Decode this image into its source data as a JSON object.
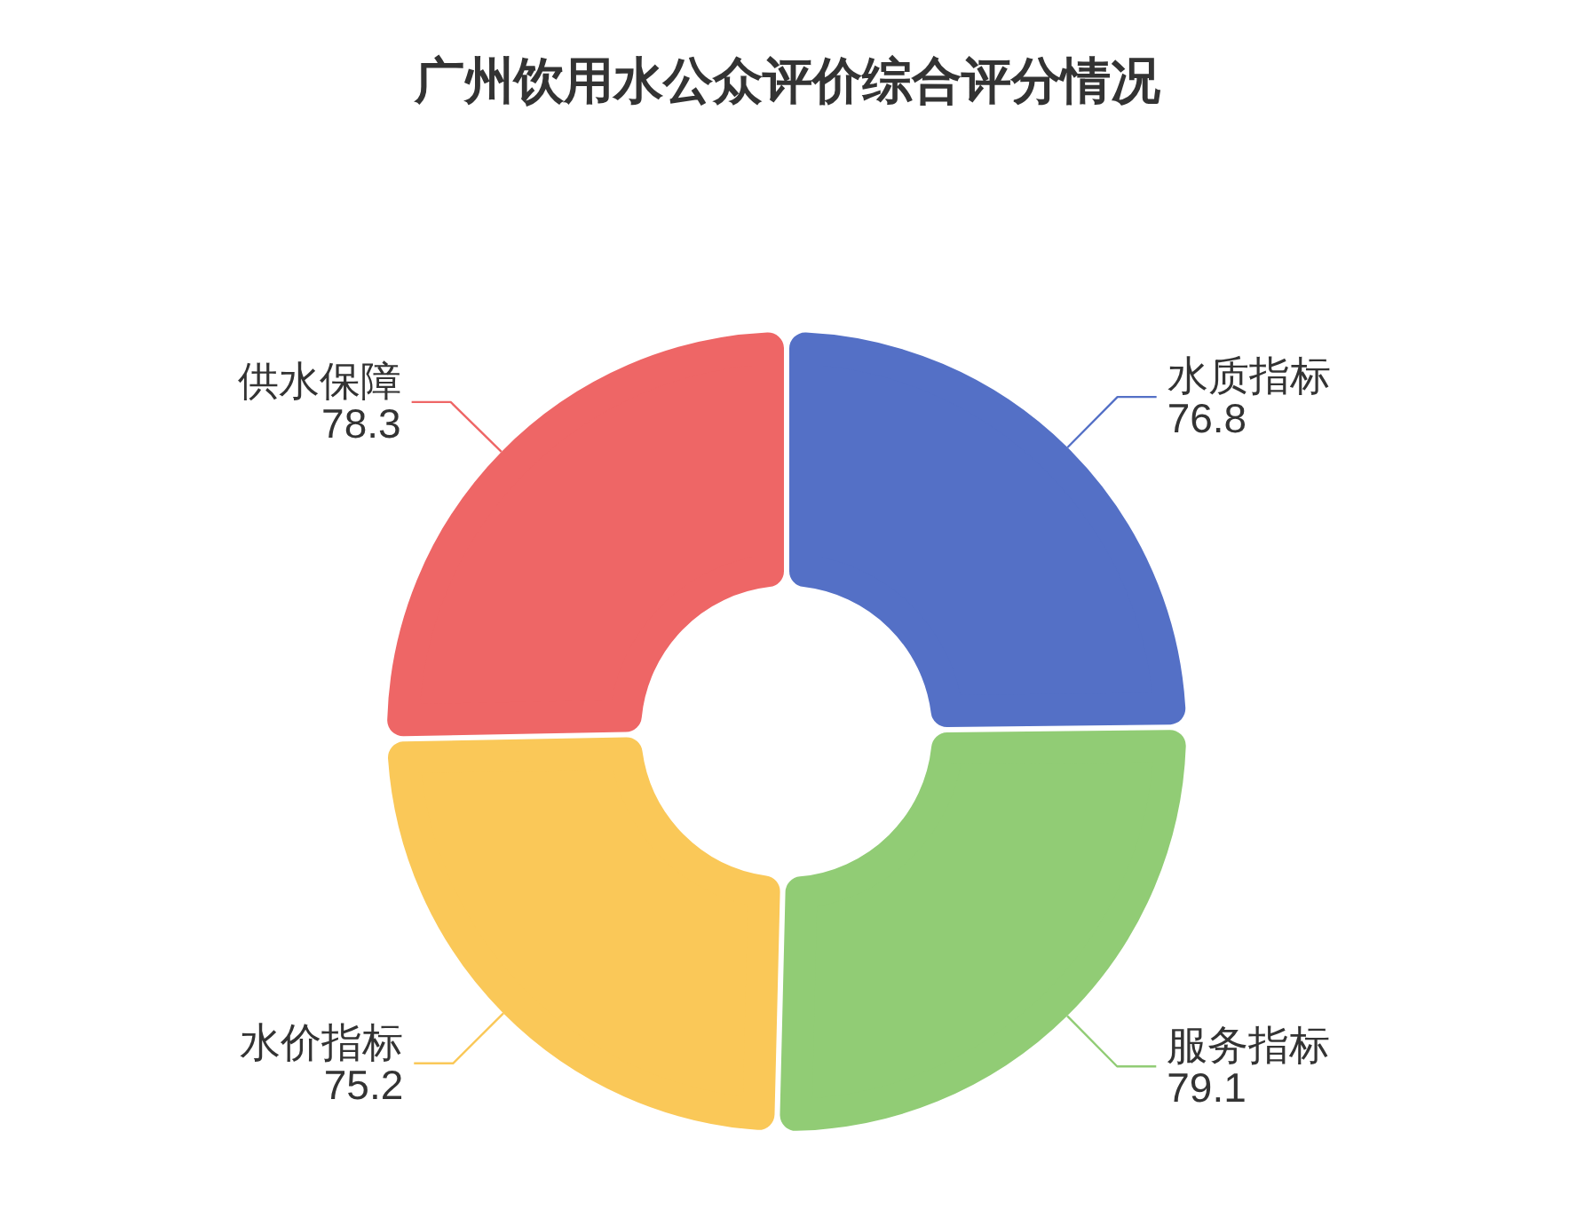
{
  "chart_data": {
    "type": "donut",
    "title": "广州饮用水公众评价综合评分情况",
    "categories": [
      "水质指标",
      "服务指标",
      "水价指标",
      "供水保障"
    ],
    "values": [
      76.8,
      79.1,
      75.2,
      78.3
    ],
    "colors": [
      "#5470c6",
      "#91cc75",
      "#fac858",
      "#ee6666"
    ],
    "data_labels": true
  }
}
